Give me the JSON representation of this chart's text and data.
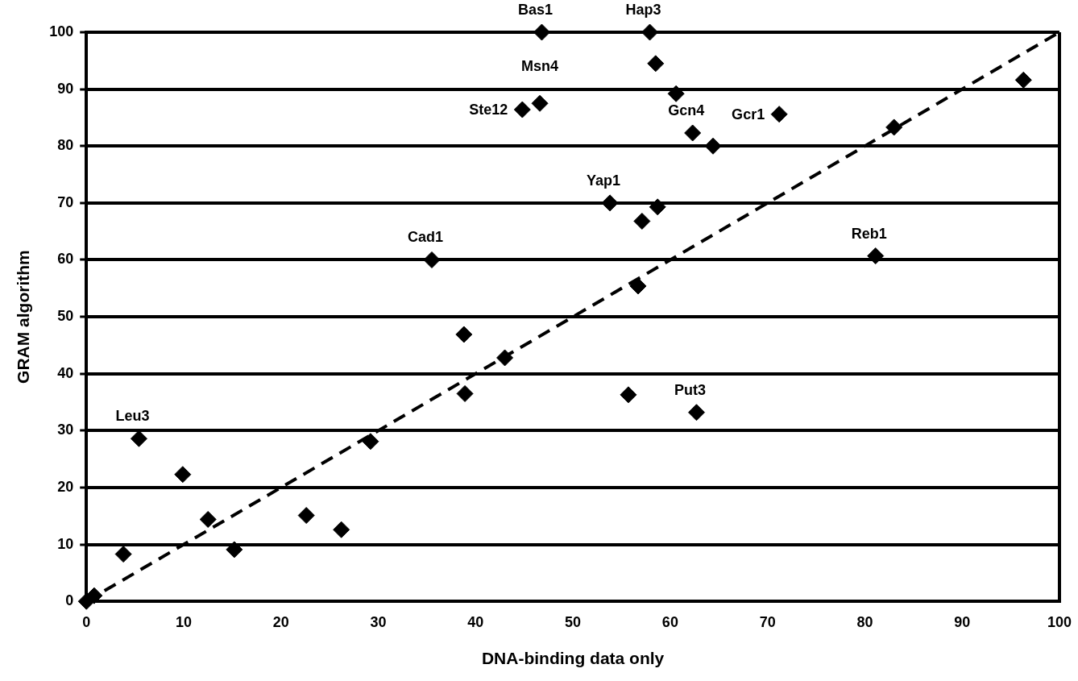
{
  "chart_data": {
    "type": "scatter",
    "xlabel": "DNA-binding data only",
    "ylabel": "GRAM algorithm",
    "xlim": [
      0,
      100
    ],
    "ylim": [
      0,
      100
    ],
    "xticks": [
      0,
      10,
      20,
      30,
      40,
      50,
      60,
      70,
      80,
      90,
      100
    ],
    "yticks": [
      0,
      10,
      20,
      30,
      40,
      50,
      60,
      70,
      80,
      90,
      100
    ],
    "grid": "y",
    "series": [
      {
        "color": "#000000",
        "marker": "diamond",
        "x": [
          0,
          0.8,
          3.8,
          5.4,
          9.9,
          12.5,
          15.2,
          22.6,
          26.2,
          29.2,
          35.5,
          38.8,
          38.9,
          43.0,
          44.8,
          46.6,
          46.8,
          53.8,
          55.7,
          56.7,
          57.1,
          57.9,
          58.5,
          58.7,
          60.6,
          62.3,
          62.7,
          64.4,
          71.2,
          81.1,
          83.0,
          96.3
        ],
        "values": [
          0,
          1.0,
          8.3,
          28.6,
          22.3,
          14.4,
          9.1,
          15.1,
          12.6,
          28.1,
          60,
          46.9,
          36.5,
          42.8,
          86.4,
          87.5,
          100,
          70,
          36.3,
          55.4,
          66.8,
          100,
          94.5,
          69.3,
          89.2,
          82.3,
          33.2,
          80,
          85.6,
          60.7,
          83.3,
          91.6
        ]
      },
      {
        "type": "line",
        "color": "#000000",
        "line_style": "dashed",
        "marker": "none",
        "x": [
          0,
          100
        ],
        "values": [
          0,
          100
        ]
      }
    ],
    "annotations": [
      {
        "text": "Bas1",
        "x": 46.8,
        "y": 100
      },
      {
        "text": "Hap3",
        "x": 57.9,
        "y": 100
      },
      {
        "text": "Msn4",
        "x": 46.6,
        "y": 87.5
      },
      {
        "text": "Ste12",
        "x": 44.8,
        "y": 86.4
      },
      {
        "text": "Gcr1",
        "x": 71.2,
        "y": 85.6
      },
      {
        "text": "Gcn4",
        "x": 62.3,
        "y": 82.3
      },
      {
        "text": "Yap1",
        "x": 53.8,
        "y": 70
      },
      {
        "text": "Cad1",
        "x": 35.5,
        "y": 60
      },
      {
        "text": "Reb1",
        "x": 81.1,
        "y": 60.7
      },
      {
        "text": "Leu3",
        "x": 5.4,
        "y": 28.6
      },
      {
        "text": "Put3",
        "x": 62.7,
        "y": 33.2
      }
    ]
  }
}
